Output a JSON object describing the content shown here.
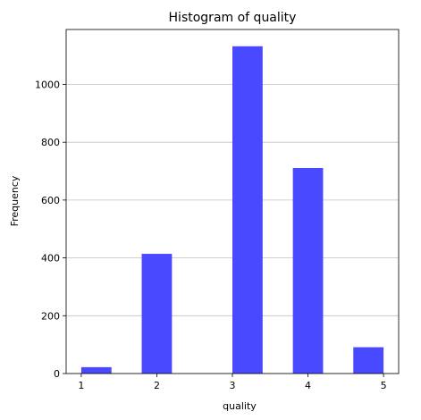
{
  "chart_data": {
    "type": "bar",
    "title": "Histogram of quality",
    "xlabel": "quality",
    "ylabel": "Frequency",
    "bins": [
      {
        "x0": 1.0,
        "x1": 1.4,
        "count": 22
      },
      {
        "x0": 1.4,
        "x1": 1.8,
        "count": 0
      },
      {
        "x0": 1.8,
        "x1": 2.2,
        "count": 414
      },
      {
        "x0": 2.2,
        "x1": 2.6,
        "count": 0
      },
      {
        "x0": 2.6,
        "x1": 3.0,
        "count": 0
      },
      {
        "x0": 3.0,
        "x1": 3.4,
        "count": 1132
      },
      {
        "x0": 3.4,
        "x1": 3.8,
        "count": 0
      },
      {
        "x0": 3.8,
        "x1": 4.2,
        "count": 711
      },
      {
        "x0": 4.2,
        "x1": 4.6,
        "count": 0
      },
      {
        "x0": 4.6,
        "x1": 5.0,
        "count": 91
      }
    ],
    "xlim": [
      0.8,
      5.2
    ],
    "ylim": [
      0,
      1190
    ],
    "xticks": [
      1,
      2,
      3,
      4,
      5
    ],
    "yticks": [
      0,
      200,
      400,
      600,
      800,
      1000
    ],
    "bar_color": "#4949ff",
    "grid": "y-axis",
    "grid_color": "#c0c0c0",
    "legend": "none"
  }
}
